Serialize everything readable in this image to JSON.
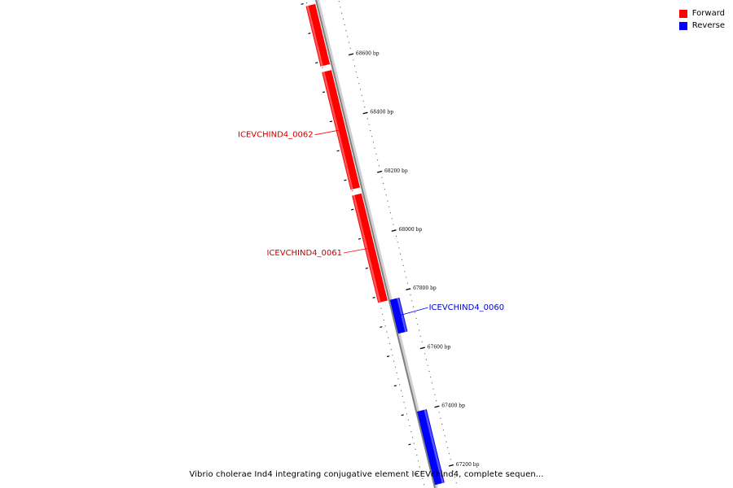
{
  "legend": {
    "forward": {
      "label": "Forward",
      "color": "#ff0000"
    },
    "reverse": {
      "label": "Reverse",
      "color": "#0000ff"
    }
  },
  "title": "Vibrio cholerae Ind4 integrating conjugative element ICEVchind4, complete sequen...",
  "ticks": [
    {
      "bp": 68600,
      "label": "68600 bp"
    },
    {
      "bp": 68400,
      "label": "68400 bp"
    },
    {
      "bp": 68200,
      "label": "68200 bp"
    },
    {
      "bp": 68000,
      "label": "68000 bp"
    },
    {
      "bp": 67800,
      "label": "67800 bp"
    },
    {
      "bp": 67600,
      "label": "67600 bp"
    },
    {
      "bp": 67400,
      "label": "67400 bp"
    },
    {
      "bp": 67200,
      "label": "67200 bp"
    }
  ],
  "features": [
    {
      "strand": "forward",
      "start": 68585,
      "end": 68790,
      "name": ""
    },
    {
      "strand": "forward",
      "start": 68165,
      "end": 68565,
      "name": "ICEVCHIND4_0062"
    },
    {
      "strand": "forward",
      "start": 67780,
      "end": 68145,
      "name": "ICEVCHIND4_0061"
    },
    {
      "strand": "reverse",
      "start": 67665,
      "end": 67780,
      "name": "ICEVCHIND4_0060"
    },
    {
      "strand": "reverse",
      "start": 67150,
      "end": 67400,
      "name": ""
    }
  ]
}
